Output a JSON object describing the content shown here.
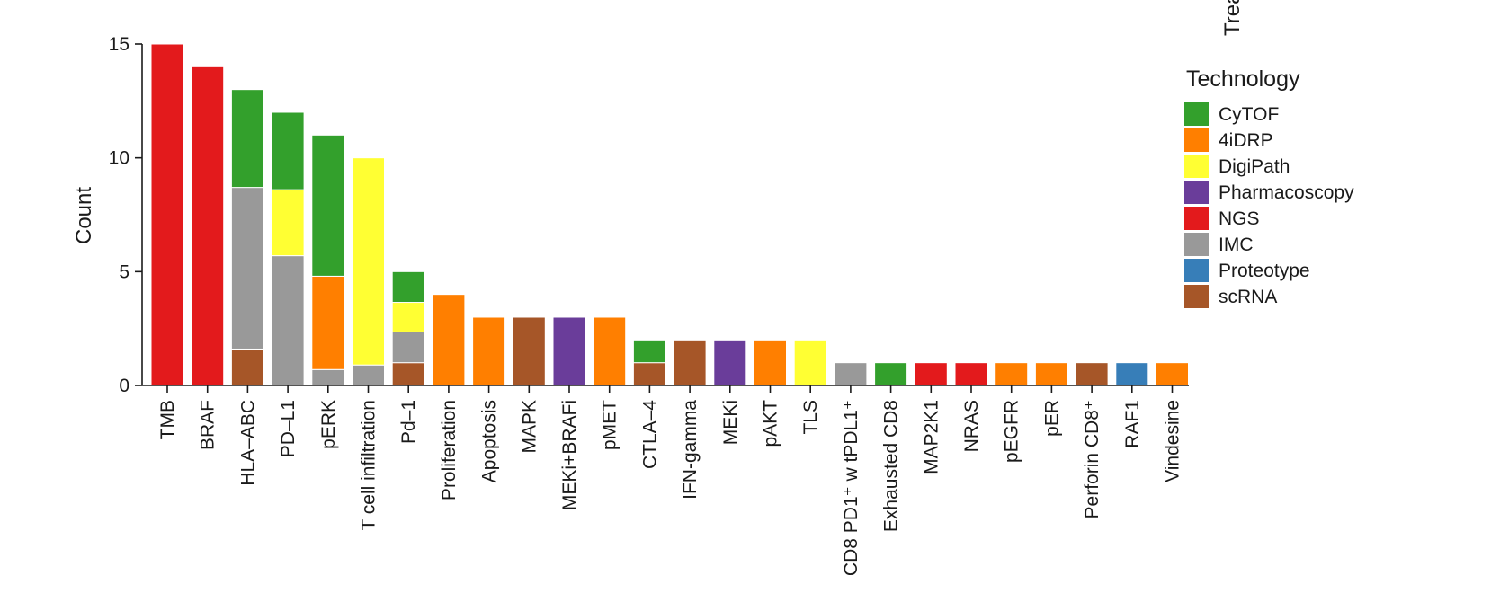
{
  "chart_data": {
    "type": "bar",
    "stacked": true,
    "ylabel": "Count",
    "xlabel": "",
    "ylim": [
      0,
      15
    ],
    "yticks": [
      0,
      5,
      10,
      15
    ],
    "clipped_title_fragment": "Trea",
    "legend": {
      "title": "Technology",
      "placement": "right",
      "entries": [
        {
          "name": "CyTOF",
          "color": "#33a02c"
        },
        {
          "name": "4iDRP",
          "color": "#ff7f00"
        },
        {
          "name": "DigiPath",
          "color": "#ffff33"
        },
        {
          "name": "Pharmacoscopy",
          "color": "#6a3d9a"
        },
        {
          "name": "NGS",
          "color": "#e31a1c"
        },
        {
          "name": "IMC",
          "color": "#999999"
        },
        {
          "name": "Proteotype",
          "color": "#377eb8"
        },
        {
          "name": "scRNA",
          "color": "#a65628"
        }
      ]
    },
    "categories": [
      "TMB",
      "BRAF",
      "HLA–ABC",
      "PD–L1",
      "pERK",
      "T cell infiltration",
      "Pd–1",
      "Proliferation",
      "Apoptosis",
      "MAPK",
      "MEKi+BRAFi",
      "pMET",
      "CTLA–4",
      "IFN-gamma",
      "MEKi",
      "pAKT",
      "TLS",
      "CD8 PD1⁺ w tPDL1⁺",
      "Exhausted CD8",
      "MAP2K1",
      "NRAS",
      "pEGFR",
      "pER",
      "Perforin CD8⁺",
      "RAF1",
      "Vindesine"
    ],
    "stacks": [
      [
        {
          "tech": "NGS",
          "value": 15
        }
      ],
      [
        {
          "tech": "NGS",
          "value": 14
        }
      ],
      [
        {
          "tech": "scRNA",
          "value": 1.6
        },
        {
          "tech": "IMC",
          "value": 7.1
        },
        {
          "tech": "CyTOF",
          "value": 4.3
        }
      ],
      [
        {
          "tech": "IMC",
          "value": 5.7
        },
        {
          "tech": "DigiPath",
          "value": 2.9
        },
        {
          "tech": "CyTOF",
          "value": 3.4
        }
      ],
      [
        {
          "tech": "IMC",
          "value": 0.7
        },
        {
          "tech": "4iDRP",
          "value": 4.1
        },
        {
          "tech": "CyTOF",
          "value": 6.2
        }
      ],
      [
        {
          "tech": "IMC",
          "value": 0.9
        },
        {
          "tech": "DigiPath",
          "value": 9.1
        }
      ],
      [
        {
          "tech": "scRNA",
          "value": 1
        },
        {
          "tech": "IMC",
          "value": 1.35
        },
        {
          "tech": "DigiPath",
          "value": 1.3
        },
        {
          "tech": "CyTOF",
          "value": 1.35
        }
      ],
      [
        {
          "tech": "4iDRP",
          "value": 4
        }
      ],
      [
        {
          "tech": "4iDRP",
          "value": 3
        }
      ],
      [
        {
          "tech": "scRNA",
          "value": 3
        }
      ],
      [
        {
          "tech": "Pharmacoscopy",
          "value": 3
        }
      ],
      [
        {
          "tech": "4iDRP",
          "value": 3
        }
      ],
      [
        {
          "tech": "scRNA",
          "value": 1
        },
        {
          "tech": "CyTOF",
          "value": 1
        }
      ],
      [
        {
          "tech": "scRNA",
          "value": 2
        }
      ],
      [
        {
          "tech": "Pharmacoscopy",
          "value": 2
        }
      ],
      [
        {
          "tech": "4iDRP",
          "value": 2
        }
      ],
      [
        {
          "tech": "DigiPath",
          "value": 2
        }
      ],
      [
        {
          "tech": "IMC",
          "value": 1
        }
      ],
      [
        {
          "tech": "CyTOF",
          "value": 1
        }
      ],
      [
        {
          "tech": "NGS",
          "value": 1
        }
      ],
      [
        {
          "tech": "NGS",
          "value": 1
        }
      ],
      [
        {
          "tech": "4iDRP",
          "value": 1
        }
      ],
      [
        {
          "tech": "4iDRP",
          "value": 1
        }
      ],
      [
        {
          "tech": "scRNA",
          "value": 1
        }
      ],
      [
        {
          "tech": "Proteotype",
          "value": 1
        }
      ],
      [
        {
          "tech": "4iDRP",
          "value": 1
        }
      ]
    ]
  }
}
